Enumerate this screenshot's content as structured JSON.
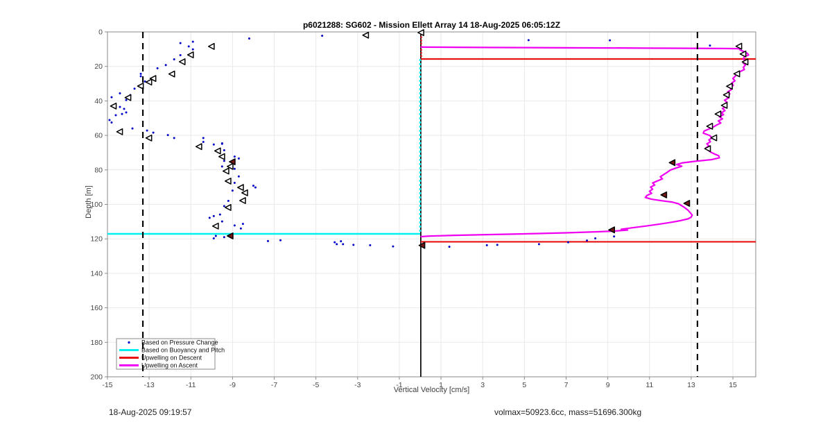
{
  "header": {
    "title": "p6021288: SG602 - Mission Ellett Array 14 18-Aug-2025 06:05:12Z"
  },
  "footer": {
    "timestamp": "18-Aug-2025 09:19:57",
    "stats": "volmax=50923.6cc, mass=51696.300kg"
  },
  "colors": {
    "pressure_dots": "#0000C8",
    "buoyancy_pitch": "#00F0F0",
    "descent_upwelling": "#E81010",
    "ascent_upwelling": "#F000F0",
    "marker_edge": "#000000",
    "marker_face_open": "#ffffff",
    "marker_face_filled": "#7a1616",
    "reference_dashed": "#000000",
    "zero_line": "#000000",
    "grid": "#e9e9e9",
    "frame": "#8a8a8a",
    "tick_label": "#464646",
    "legend_border": "#8a8a8a",
    "legend_bg": "#ffffff"
  },
  "chart_data": {
    "type": "line",
    "title": "p6021288: SG602 - Mission Ellett Array 14 18-Aug-2025 06:05:12Z",
    "xlabel": "Vertical Velocity [cm/s]",
    "ylabel": "Depth [m]",
    "xlim": [
      -15,
      16.1
    ],
    "ylim": [
      0,
      200
    ],
    "y_axis_reversed": true,
    "grid": true,
    "xticks": [
      -15,
      -13,
      -11,
      -9,
      -7,
      -5,
      -3,
      -1,
      1,
      3,
      5,
      7,
      9,
      11,
      13,
      15
    ],
    "yticks": [
      0,
      20,
      40,
      60,
      80,
      100,
      120,
      140,
      160,
      180,
      200
    ],
    "legend": {
      "position": "southwest",
      "items": [
        {
          "label": "Based on Pressure Change",
          "marker": "dot",
          "color": "#0000C8"
        },
        {
          "label": "Based on Buoyancy and Pitch",
          "marker": "line",
          "color": "#00F0F0"
        },
        {
          "label": "Upwelling on Descent",
          "marker": "line",
          "color": "#E81010"
        },
        {
          "label": "Upwelling on Ascent",
          "marker": "line",
          "color": "#F000F0"
        }
      ]
    },
    "reference_lines": {
      "vertical_dashed_black_x": [
        -13.3,
        13.3
      ],
      "zero_line": {
        "x": 0.03,
        "depth_from": 0,
        "depth_to": 200
      }
    },
    "series": {
      "buoyancy_pitch_line": {
        "vertical": {
          "x": 0.0,
          "depth_from": 15.7,
          "depth_to": 117.0
        },
        "horizontal": {
          "depth": 117.1,
          "x_from": -15,
          "x_to": 0.0
        }
      },
      "descent_upwelling_line": {
        "vertical": {
          "x": 0.02,
          "depth_from": 0.8,
          "depth_to": 15.7
        },
        "horizontals": [
          {
            "depth": 15.7,
            "x_from": 0.03,
            "x_to": 16.1
          },
          {
            "depth": 121.7,
            "x_from": 0.03,
            "x_to": 16.1
          }
        ]
      },
      "ascent_upwelling_line": {
        "points": [
          [
            0.05,
            8.8
          ],
          [
            1.5,
            8.9
          ],
          [
            3,
            9.0
          ],
          [
            5,
            9.1
          ],
          [
            7,
            9.2
          ],
          [
            9,
            9.3
          ],
          [
            11,
            9.4
          ],
          [
            13,
            9.5
          ],
          [
            14.5,
            9.6
          ],
          [
            15.3,
            9.7
          ],
          [
            15.35,
            10.5
          ],
          [
            15.55,
            11.5
          ],
          [
            15.7,
            12.5
          ],
          [
            15.75,
            13.4
          ],
          [
            15.55,
            14.4
          ],
          [
            15.5,
            15.6
          ],
          [
            15.58,
            16.8
          ],
          [
            15.5,
            18.0
          ],
          [
            15.6,
            19.2
          ],
          [
            15.5,
            20.5
          ],
          [
            15.55,
            21.8
          ],
          [
            15.35,
            23.0
          ],
          [
            15.2,
            24.3
          ],
          [
            15.12,
            25.6
          ],
          [
            15.0,
            27.0
          ],
          [
            15.1,
            28.3
          ],
          [
            14.95,
            29.6
          ],
          [
            15.02,
            31.0
          ],
          [
            14.85,
            32.2
          ],
          [
            14.92,
            33.5
          ],
          [
            14.75,
            34.8
          ],
          [
            14.85,
            36.0
          ],
          [
            14.68,
            37.2
          ],
          [
            14.78,
            38.4
          ],
          [
            14.6,
            39.6
          ],
          [
            14.72,
            40.8
          ],
          [
            14.58,
            42.0
          ],
          [
            14.68,
            43.2
          ],
          [
            14.5,
            44.4
          ],
          [
            14.62,
            45.6
          ],
          [
            14.45,
            46.9
          ],
          [
            14.55,
            48.0
          ],
          [
            14.35,
            49.2
          ],
          [
            14.5,
            50.4
          ],
          [
            14.3,
            51.6
          ],
          [
            14.42,
            52.8
          ],
          [
            14.22,
            54.0
          ],
          [
            14.05,
            55.2
          ],
          [
            13.85,
            56.3
          ],
          [
            13.62,
            57.5
          ],
          [
            13.58,
            58.7
          ],
          [
            13.88,
            60.0
          ],
          [
            14.0,
            61.4
          ],
          [
            13.85,
            62.6
          ],
          [
            13.92,
            63.7
          ],
          [
            13.75,
            64.9
          ],
          [
            13.85,
            66.1
          ],
          [
            13.7,
            67.3
          ],
          [
            13.8,
            68.4
          ],
          [
            13.92,
            69.6
          ],
          [
            14.1,
            70.7
          ],
          [
            14.32,
            71.8
          ],
          [
            14.35,
            73.0
          ],
          [
            13.95,
            74.1
          ],
          [
            13.2,
            75.0
          ],
          [
            12.6,
            75.9
          ],
          [
            12.3,
            76.9
          ],
          [
            12.55,
            77.9
          ],
          [
            12.28,
            78.9
          ],
          [
            12.0,
            80.1
          ],
          [
            11.85,
            81.4
          ],
          [
            11.68,
            82.7
          ],
          [
            11.52,
            84.0
          ],
          [
            11.62,
            85.2
          ],
          [
            11.38,
            86.4
          ],
          [
            11.15,
            87.6
          ],
          [
            11.25,
            88.8
          ],
          [
            11.05,
            90.0
          ],
          [
            11.15,
            91.2
          ],
          [
            11.0,
            92.4
          ],
          [
            11.1,
            93.6
          ],
          [
            10.88,
            94.8
          ],
          [
            10.8,
            96.0
          ],
          [
            11.1,
            97.0
          ],
          [
            11.6,
            97.9
          ],
          [
            12.1,
            98.7
          ],
          [
            12.38,
            99.6
          ],
          [
            12.55,
            100.8
          ],
          [
            12.7,
            102.0
          ],
          [
            12.85,
            103.4
          ],
          [
            12.95,
            104.8
          ],
          [
            13.05,
            106.2
          ],
          [
            13.0,
            107.4
          ],
          [
            12.85,
            108.4
          ],
          [
            12.5,
            109.4
          ],
          [
            12.0,
            110.5
          ],
          [
            11.4,
            111.6
          ],
          [
            10.8,
            112.6
          ],
          [
            10.15,
            113.6
          ],
          [
            9.65,
            114.4
          ],
          [
            9.95,
            114.9
          ],
          [
            9.3,
            115.5
          ],
          [
            8.5,
            115.9
          ],
          [
            7.0,
            116.5
          ],
          [
            5.0,
            117.1
          ],
          [
            3.0,
            117.6
          ],
          [
            1.5,
            118.0
          ],
          [
            0.4,
            118.4
          ],
          [
            0.05,
            118.7
          ]
        ]
      },
      "pressure_change_points": [
        [
          -4.7,
          2.2
        ],
        [
          5.2,
          4.8
        ],
        [
          9.1,
          4.9
        ],
        [
          13.9,
          7.9
        ],
        [
          -8.2,
          3.8
        ],
        [
          -10.9,
          5.7
        ],
        [
          -11.5,
          6.5
        ],
        [
          -11.1,
          8.4
        ],
        [
          -10.9,
          10.1
        ],
        [
          -11.5,
          13.5
        ],
        [
          -11.8,
          15.9
        ],
        [
          -12.2,
          19.2
        ],
        [
          -12.6,
          21.1
        ],
        [
          -13.4,
          24.3
        ],
        [
          -13.4,
          25.7
        ],
        [
          -13.2,
          28.7
        ],
        [
          -13.7,
          32.9
        ],
        [
          -14.4,
          35.6
        ],
        [
          -13.9,
          36.6
        ],
        [
          -14.8,
          37.9
        ],
        [
          -14.1,
          39.5
        ],
        [
          -14.4,
          43.5
        ],
        [
          -14.2,
          44.6
        ],
        [
          -14.1,
          46.7
        ],
        [
          -14.3,
          47.6
        ],
        [
          -14.6,
          48.3
        ],
        [
          -14.9,
          51.1
        ],
        [
          -14.8,
          52.5
        ],
        [
          -13.8,
          56.0
        ],
        [
          -13.1,
          57.2
        ],
        [
          -12.8,
          58.4
        ],
        [
          -12.1,
          59.8
        ],
        [
          -11.8,
          61.5
        ],
        [
          -10.4,
          63.8
        ],
        [
          -9.5,
          64.6
        ],
        [
          -10.4,
          61.5
        ],
        [
          -9.9,
          65.3
        ],
        [
          -9.5,
          64.9
        ],
        [
          -9.4,
          68.6
        ],
        [
          -8.9,
          72.3
        ],
        [
          -8.7,
          73.4
        ],
        [
          -9.4,
          74.8
        ],
        [
          -9.5,
          78.0
        ],
        [
          -8.9,
          79.4
        ],
        [
          -8.7,
          83.8
        ],
        [
          -8.9,
          87.5
        ],
        [
          -8.0,
          89.2
        ],
        [
          -7.9,
          90.2
        ],
        [
          -9.0,
          92.0
        ],
        [
          -9.2,
          98.0
        ],
        [
          -9.4,
          101.0
        ],
        [
          -9.6,
          105.9
        ],
        [
          -9.9,
          106.8
        ],
        [
          -10.1,
          107.8
        ],
        [
          -9.5,
          109.9
        ],
        [
          -8.5,
          111.3
        ],
        [
          -8.9,
          112.2
        ],
        [
          -8.6,
          114.0
        ],
        [
          -9.8,
          118.3
        ],
        [
          -9.4,
          119.0
        ],
        [
          -9.9,
          119.7
        ],
        [
          -7.3,
          121.3
        ],
        [
          -6.7,
          120.8
        ],
        [
          -4.1,
          122.0
        ],
        [
          -4.0,
          123.1
        ],
        [
          -3.8,
          121.4
        ],
        [
          -3.7,
          123.1
        ],
        [
          -3.2,
          123.5
        ],
        [
          -2.4,
          123.7
        ],
        [
          -1.3,
          124.4
        ],
        [
          1.4,
          124.6
        ],
        [
          3.2,
          123.7
        ],
        [
          3.7,
          123.5
        ],
        [
          5.7,
          123.1
        ],
        [
          7.1,
          122.0
        ],
        [
          8.0,
          121.0
        ],
        [
          8.4,
          119.7
        ],
        [
          9.3,
          118.6
        ]
      ],
      "open_triangle_markers": [
        [
          0.05,
          0.4
        ],
        [
          -2.6,
          1.9
        ],
        [
          -10.0,
          8.4
        ],
        [
          -11.0,
          13.3
        ],
        [
          -11.4,
          17.3
        ],
        [
          -11.9,
          24.4
        ],
        [
          -12.8,
          27.0
        ],
        [
          -13.0,
          29.1
        ],
        [
          -13.4,
          31.4
        ],
        [
          -14.0,
          38.1
        ],
        [
          -14.7,
          43.0
        ],
        [
          -14.4,
          57.9
        ],
        [
          -13.0,
          61.5
        ],
        [
          -10.6,
          66.5
        ],
        [
          -9.7,
          69.0
        ],
        [
          -9.5,
          72.3
        ],
        [
          -9.1,
          78.0
        ],
        [
          -9.3,
          80.7
        ],
        [
          -9.2,
          86.5
        ],
        [
          -8.6,
          90.2
        ],
        [
          -8.4,
          93.3
        ],
        [
          -8.5,
          97.8
        ],
        [
          -9.2,
          101.8
        ],
        [
          -9.8,
          112.6
        ],
        [
          15.3,
          8.3
        ],
        [
          15.5,
          12.8
        ],
        [
          15.6,
          17.4
        ],
        [
          15.2,
          24.3
        ],
        [
          14.85,
          31.5
        ],
        [
          14.7,
          36.5
        ],
        [
          14.6,
          42.6
        ],
        [
          14.3,
          47.6
        ],
        [
          13.9,
          54.7
        ],
        [
          14.1,
          61.4
        ],
        [
          13.8,
          67.7
        ]
      ],
      "filled_triangle_markers": [
        [
          -9.0,
          75.3
        ],
        [
          -9.1,
          118.3
        ],
        [
          0.1,
          123.8
        ],
        [
          12.1,
          75.8
        ],
        [
          11.7,
          94.5
        ],
        [
          12.8,
          99.4
        ],
        [
          9.2,
          114.8
        ]
      ]
    }
  }
}
